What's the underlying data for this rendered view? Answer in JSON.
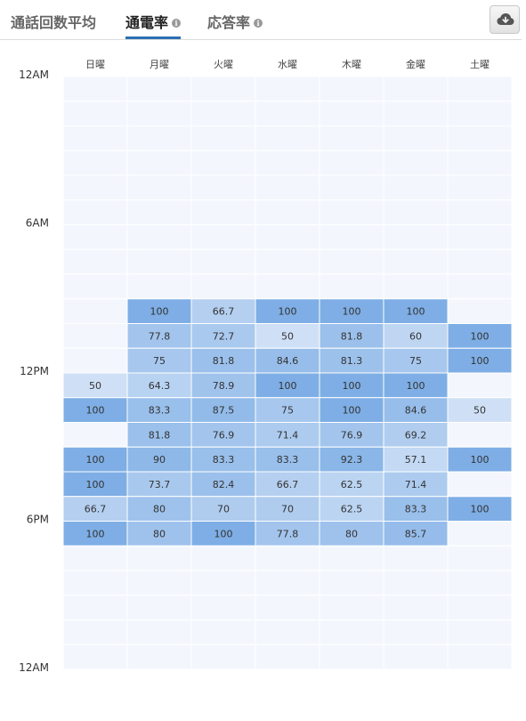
{
  "tabs": [
    {
      "label": "通話回数平均",
      "active": false,
      "info": false
    },
    {
      "label": "通電率",
      "active": true,
      "info": true
    },
    {
      "label": "応答率",
      "active": false,
      "info": true
    }
  ],
  "download_icon": "cloud-download-icon",
  "colors": {
    "empty": "#f3f7fd",
    "low": "#cfe0f6",
    "high": "#7eaee5",
    "text": "#333333"
  },
  "chart_data": {
    "type": "heatmap",
    "days": [
      "日曜",
      "月曜",
      "火曜",
      "水曜",
      "木曜",
      "金曜",
      "土曜"
    ],
    "hours": [
      0,
      1,
      2,
      3,
      4,
      5,
      6,
      7,
      8,
      9,
      10,
      11,
      12,
      13,
      14,
      15,
      16,
      17,
      18,
      19,
      20,
      21,
      22,
      23
    ],
    "y_tick_labels": [
      {
        "hour": 0,
        "label": "12AM"
      },
      {
        "hour": 6,
        "label": "6AM"
      },
      {
        "hour": 12,
        "label": "12PM"
      },
      {
        "hour": 18,
        "label": "6PM"
      },
      {
        "hour": 24,
        "label": "12AM"
      }
    ],
    "value_range": [
      50,
      100
    ],
    "values": {
      "9": [
        null,
        100,
        66.7,
        100,
        100,
        100,
        null
      ],
      "10": [
        null,
        77.8,
        72.7,
        50,
        81.8,
        60,
        100
      ],
      "11": [
        null,
        75,
        81.8,
        84.6,
        81.3,
        75,
        100
      ],
      "12": [
        50,
        64.3,
        78.9,
        100,
        100,
        100,
        null
      ],
      "13": [
        100,
        83.3,
        87.5,
        75,
        100,
        84.6,
        50
      ],
      "14": [
        null,
        81.8,
        76.9,
        71.4,
        76.9,
        69.2,
        null
      ],
      "15": [
        100,
        90,
        83.3,
        83.3,
        92.3,
        57.1,
        100
      ],
      "16": [
        100,
        73.7,
        82.4,
        66.7,
        62.5,
        71.4,
        null
      ],
      "17": [
        66.7,
        80,
        70,
        70,
        62.5,
        83.3,
        100
      ],
      "18": [
        100,
        80,
        100,
        77.8,
        80,
        85.7,
        null
      ]
    }
  }
}
